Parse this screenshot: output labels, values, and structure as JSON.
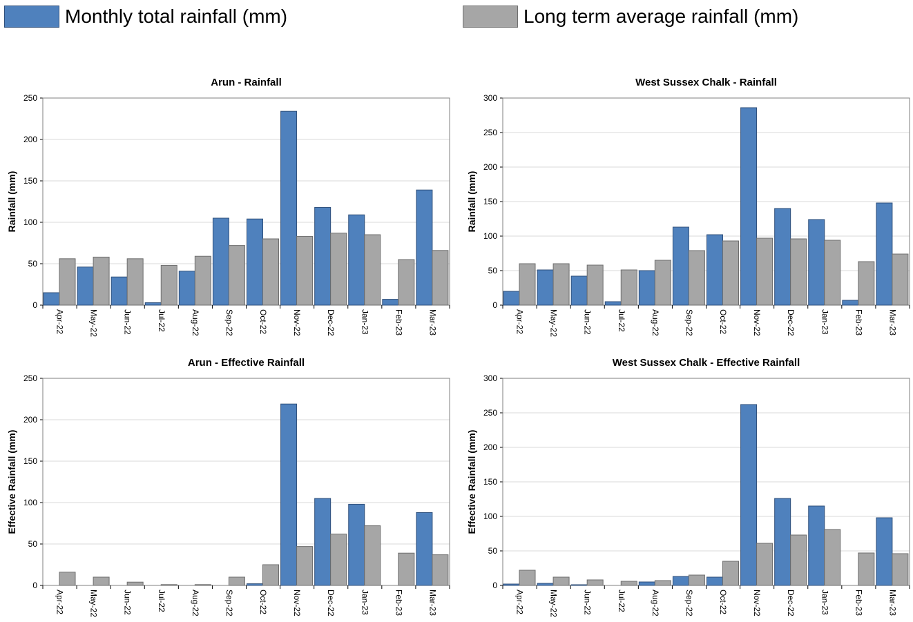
{
  "legend": {
    "total_label": "Monthly total rainfall (mm)",
    "average_label": "Long term average rainfall (mm)"
  },
  "colors": {
    "total": "#4f81bd",
    "total_border": "#2f4f7a",
    "average": "#a6a6a6",
    "average_border": "#6e6e6e",
    "grid": "#d9d9d9"
  },
  "chart_data": [
    {
      "type": "bar",
      "title": "Arun - Rainfall",
      "xlabel": "",
      "ylabel": "Rainfall (mm)",
      "ylim": [
        0,
        250
      ],
      "yticks": [
        0,
        50,
        100,
        150,
        200,
        250
      ],
      "categories": [
        "Apr-22",
        "May-22",
        "Jun-22",
        "Jul-22",
        "Aug-22",
        "Sep-22",
        "Oct-22",
        "Nov-22",
        "Dec-22",
        "Jan-23",
        "Feb-23",
        "Mar-23"
      ],
      "series": [
        {
          "name": "Monthly total rainfall (mm)",
          "values": [
            15,
            46,
            34,
            3,
            41,
            105,
            104,
            234,
            118,
            109,
            7,
            139
          ]
        },
        {
          "name": "Long term average rainfall (mm)",
          "values": [
            56,
            58,
            56,
            48,
            59,
            72,
            80,
            83,
            87,
            85,
            55,
            66
          ]
        }
      ],
      "grid": true
    },
    {
      "type": "bar",
      "title": "West Sussex Chalk - Rainfall",
      "xlabel": "",
      "ylabel": "Rainfall (mm)",
      "ylim": [
        0,
        300
      ],
      "yticks": [
        0,
        50,
        100,
        150,
        200,
        250,
        300
      ],
      "categories": [
        "Apr-22",
        "May-22",
        "Jun-22",
        "Jul-22",
        "Aug-22",
        "Sep-22",
        "Oct-22",
        "Nov-22",
        "Dec-22",
        "Jan-23",
        "Feb-23",
        "Mar-23"
      ],
      "series": [
        {
          "name": "Monthly total rainfall (mm)",
          "values": [
            20,
            51,
            42,
            5,
            50,
            113,
            102,
            286,
            140,
            124,
            7,
            148
          ]
        },
        {
          "name": "Long term average rainfall (mm)",
          "values": [
            60,
            60,
            58,
            51,
            65,
            79,
            93,
            97,
            96,
            94,
            63,
            74
          ]
        }
      ],
      "grid": true
    },
    {
      "type": "bar",
      "title": "Arun - Effective Rainfall",
      "xlabel": "",
      "ylabel": "Effective Rainfall (mm)",
      "ylim": [
        0,
        250
      ],
      "yticks": [
        0,
        50,
        100,
        150,
        200,
        250
      ],
      "categories": [
        "Apr-22",
        "May-22",
        "Jun-22",
        "Jul-22",
        "Aug-22",
        "Sep-22",
        "Oct-22",
        "Nov-22",
        "Dec-22",
        "Jan-23",
        "Feb-23",
        "Mar-23"
      ],
      "series": [
        {
          "name": "Monthly total rainfall (mm)",
          "values": [
            0,
            0,
            0,
            0,
            0,
            0,
            2,
            219,
            105,
            98,
            0,
            88
          ]
        },
        {
          "name": "Long term average rainfall (mm)",
          "values": [
            16,
            10,
            4,
            1,
            1,
            10,
            25,
            47,
            62,
            72,
            39,
            37
          ]
        }
      ],
      "grid": true
    },
    {
      "type": "bar",
      "title": "West Sussex Chalk - Effective Rainfall",
      "xlabel": "",
      "ylabel": "Effective Rainfall (mm)",
      "ylim": [
        0,
        300
      ],
      "yticks": [
        0,
        50,
        100,
        150,
        200,
        250,
        300
      ],
      "categories": [
        "Apr-22",
        "May-22",
        "Jun-22",
        "Jul-22",
        "Aug-22",
        "Sep-22",
        "Oct-22",
        "Nov-22",
        "Dec-22",
        "Jan-23",
        "Feb-23",
        "Mar-23"
      ],
      "series": [
        {
          "name": "Monthly total rainfall (mm)",
          "values": [
            2,
            3,
            1,
            0,
            5,
            13,
            12,
            262,
            126,
            115,
            0,
            98
          ]
        },
        {
          "name": "Long term average rainfall (mm)",
          "values": [
            22,
            12,
            8,
            6,
            7,
            15,
            35,
            61,
            73,
            81,
            47,
            46
          ]
        }
      ],
      "grid": true
    }
  ]
}
